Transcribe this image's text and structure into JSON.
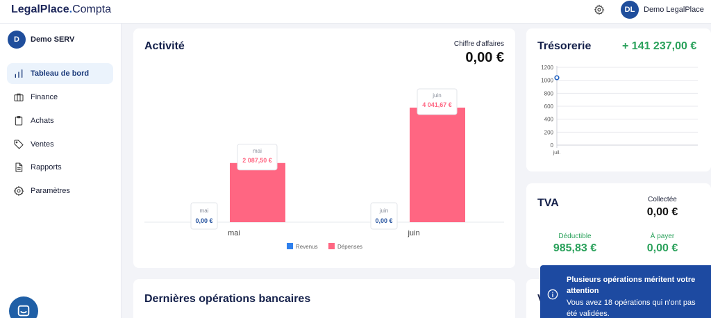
{
  "topbar": {
    "logo_main": "LegalPlace",
    "logo_dot": ".",
    "logo_sub": "Compta",
    "user_initials": "DL",
    "user_name": "Demo LegalPlace"
  },
  "sidebar": {
    "company_initial": "D",
    "company_name": "Demo SERV",
    "items": [
      {
        "label": "Tableau de bord",
        "icon": "bar-chart-icon",
        "active": true
      },
      {
        "label": "Finance",
        "icon": "briefcase-icon"
      },
      {
        "label": "Achats",
        "icon": "clipboard-icon"
      },
      {
        "label": "Ventes",
        "icon": "tag-icon"
      },
      {
        "label": "Rapports",
        "icon": "document-icon"
      },
      {
        "label": "Paramètres",
        "icon": "gear-icon"
      }
    ]
  },
  "activity": {
    "title": "Activité",
    "ca_label": "Chiffre d'affaires",
    "ca_value": "0,00 €"
  },
  "treasury": {
    "title": "Trésorerie",
    "value": "+ 141 237,00 €"
  },
  "tva": {
    "title": "TVA",
    "collectee_label": "Collectée",
    "collectee_value": "0,00 €",
    "deductible_label": "Déductible",
    "deductible_value": "985,83 €",
    "a_payer_label": "À payer",
    "a_payer_value": "0,00 €"
  },
  "operations": {
    "title": "Dernières opérations bancaires"
  },
  "hidden_card": {
    "letter": "V"
  },
  "notification": {
    "title": "Plusieurs opérations méritent votre attention",
    "body": "Vous avez 18 opérations qui n'ont pas été validées."
  },
  "colors": {
    "revenus": "#2f80ed",
    "depenses": "#ff6682",
    "positive": "#2aa15b",
    "brand": "#1f4e9c"
  },
  "chart_data": [
    {
      "type": "bar",
      "categories": [
        "mai",
        "juin"
      ],
      "series": [
        {
          "name": "Revenus",
          "values": [
            0,
            0
          ],
          "labels": [
            "0,00 €",
            "0,00 €"
          ]
        },
        {
          "name": "Dépenses",
          "values": [
            2087.5,
            4041.67
          ],
          "labels": [
            "2 087,50 €",
            "4 041,67 €"
          ]
        }
      ],
      "legend_position": "bottom"
    },
    {
      "type": "line",
      "x": [
        "juil."
      ],
      "series": [
        {
          "values": [
            1040
          ]
        }
      ],
      "yticks": [
        0,
        200,
        400,
        600,
        800,
        1000,
        1200
      ],
      "ylim": [
        0,
        1200
      ],
      "grid": true
    }
  ]
}
